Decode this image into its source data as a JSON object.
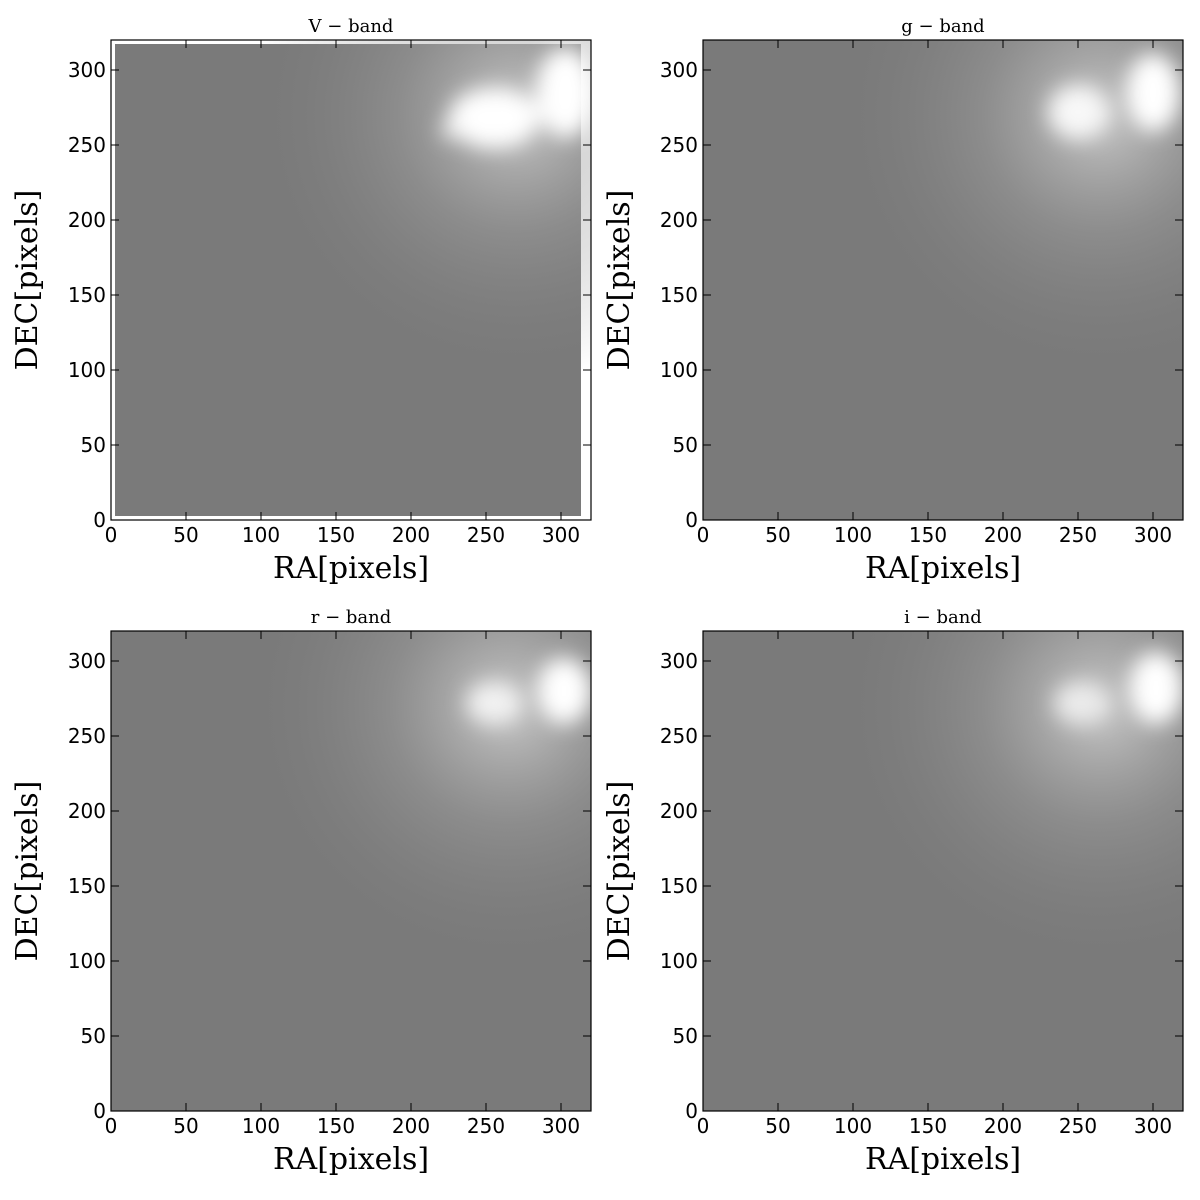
{
  "chart_data": [
    {
      "type": "heatmap",
      "title": "V − band",
      "xlabel": "RA[pixels]",
      "ylabel": "DEC[pixels]",
      "xlim": [
        0,
        320
      ],
      "ylim": [
        0,
        320
      ],
      "xticks": [
        0,
        50,
        100,
        150,
        200,
        250,
        300
      ],
      "yticks": [
        0,
        50,
        100,
        150,
        200,
        250,
        300
      ],
      "colormap": "gray",
      "background_color": "#7a7a7a",
      "bright_regions": [
        {
          "x": 255,
          "y": 268,
          "rx": 30,
          "ry": 20,
          "intensity": 1.0
        },
        {
          "x": 303,
          "y": 285,
          "rx": 20,
          "ry": 30,
          "intensity": 1.0
        },
        {
          "x": 228,
          "y": 260,
          "rx": 8,
          "ry": 6,
          "intensity": 0.9
        }
      ],
      "haze_center": {
        "x": 270,
        "y": 270
      },
      "white_border": true
    },
    {
      "type": "heatmap",
      "title": "g − band",
      "xlabel": "RA[pixels]",
      "ylabel": "DEC[pixels]",
      "xlim": [
        0,
        320
      ],
      "ylim": [
        0,
        320
      ],
      "xticks": [
        0,
        50,
        100,
        150,
        200,
        250,
        300
      ],
      "yticks": [
        0,
        50,
        100,
        150,
        200,
        250,
        300
      ],
      "colormap": "gray",
      "background_color": "#7a7a7a",
      "bright_regions": [
        {
          "x": 250,
          "y": 272,
          "rx": 20,
          "ry": 18,
          "intensity": 0.95
        },
        {
          "x": 300,
          "y": 285,
          "rx": 18,
          "ry": 26,
          "intensity": 1.0
        },
        {
          "x": 295,
          "y": 295,
          "rx": 5,
          "ry": 5,
          "intensity": 1.0
        }
      ],
      "haze_center": {
        "x": 265,
        "y": 270
      },
      "white_border": false
    },
    {
      "type": "heatmap",
      "title": "r − band",
      "xlabel": "RA[pixels]",
      "ylabel": "DEC[pixels]",
      "xlim": [
        0,
        320
      ],
      "ylim": [
        0,
        320
      ],
      "xticks": [
        0,
        50,
        100,
        150,
        200,
        250,
        300
      ],
      "yticks": [
        0,
        50,
        100,
        150,
        200,
        250,
        300
      ],
      "colormap": "gray",
      "background_color": "#7a7a7a",
      "bright_regions": [
        {
          "x": 255,
          "y": 272,
          "rx": 18,
          "ry": 14,
          "intensity": 0.9
        },
        {
          "x": 302,
          "y": 280,
          "rx": 18,
          "ry": 22,
          "intensity": 1.0
        },
        {
          "x": 295,
          "y": 295,
          "rx": 5,
          "ry": 5,
          "intensity": 1.0
        }
      ],
      "haze_center": {
        "x": 265,
        "y": 270
      },
      "white_border": false
    },
    {
      "type": "heatmap",
      "title": "i − band",
      "xlabel": "RA[pixels]",
      "ylabel": "DEC[pixels]",
      "xlim": [
        0,
        320
      ],
      "ylim": [
        0,
        320
      ],
      "xticks": [
        0,
        50,
        100,
        150,
        200,
        250,
        300
      ],
      "yticks": [
        0,
        50,
        100,
        150,
        200,
        250,
        300
      ],
      "colormap": "gray",
      "background_color": "#7a7a7a",
      "bright_regions": [
        {
          "x": 252,
          "y": 272,
          "rx": 18,
          "ry": 14,
          "intensity": 0.85
        },
        {
          "x": 302,
          "y": 282,
          "rx": 18,
          "ry": 24,
          "intensity": 1.0
        },
        {
          "x": 295,
          "y": 295,
          "rx": 5,
          "ry": 5,
          "intensity": 1.0
        }
      ],
      "haze_center": {
        "x": 265,
        "y": 270
      },
      "white_border": false
    }
  ]
}
